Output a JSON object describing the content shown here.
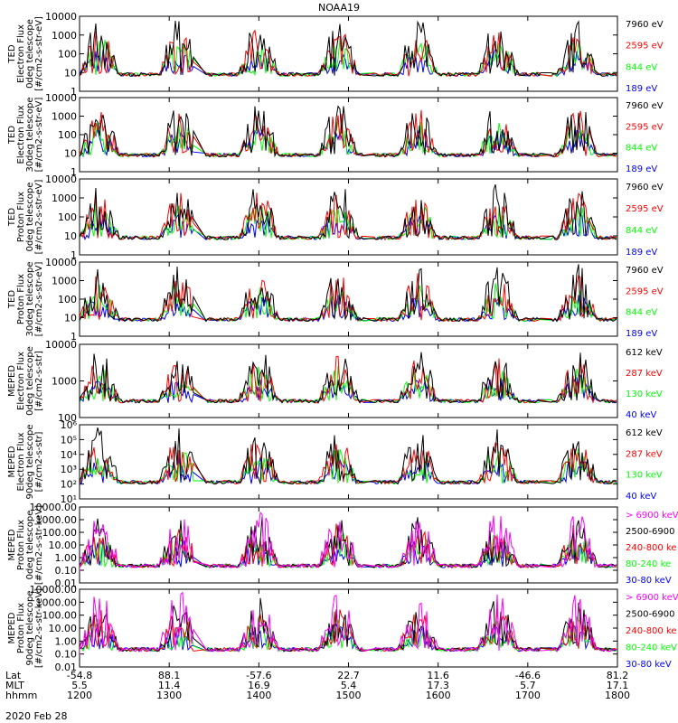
{
  "title": "NOAA19",
  "date": "2020 Feb 28",
  "colors": {
    "black": "#000000",
    "red": "#ff0000",
    "green": "#00ff00",
    "blue": "#0000ff",
    "magenta": "#ff00ff"
  },
  "footer": {
    "rows": [
      {
        "label": "Lat",
        "values": [
          "-54.8",
          "88.1",
          "-57.6",
          "22.7",
          "11.6",
          "-46.6",
          "81.2"
        ]
      },
      {
        "label": "MLT",
        "values": [
          "5.5",
          "11.4",
          "16.9",
          "5.4",
          "17.3",
          "5.7",
          "17.1"
        ]
      },
      {
        "label": "hhmm",
        "values": [
          "1200",
          "1300",
          "1400",
          "1500",
          "1600",
          "1700",
          "1800"
        ]
      }
    ]
  },
  "chart_data": [
    {
      "type": "line",
      "ylabel": [
        "TED",
        "Electron Flux",
        "0deg telescope",
        "[#/cm2-s-str-eV]"
      ],
      "yscale": "log",
      "ylim": [
        1,
        10000
      ],
      "yticks": [
        "10000",
        "1000",
        "100",
        "10",
        "1"
      ],
      "series": [
        {
          "name": "7960 eV",
          "color": "#000000"
        },
        {
          "name": "2595 eV",
          "color": "#ff0000"
        },
        {
          "name": "844 eV",
          "color": "#00ff00"
        },
        {
          "name": "189 eV",
          "color": "#0000ff"
        }
      ]
    },
    {
      "type": "line",
      "ylabel": [
        "TED",
        "Electron Flux",
        "30deg telescope",
        "[#/cm2-s-str-eV]"
      ],
      "yscale": "log",
      "ylim": [
        1,
        10000
      ],
      "yticks": [
        "10000",
        "1000",
        "100",
        "10",
        "1"
      ],
      "series": [
        {
          "name": "7960 eV",
          "color": "#000000"
        },
        {
          "name": "2595 eV",
          "color": "#ff0000"
        },
        {
          "name": "844 eV",
          "color": "#00ff00"
        },
        {
          "name": "189 eV",
          "color": "#0000ff"
        }
      ]
    },
    {
      "type": "line",
      "ylabel": [
        "TED",
        "Proton Flux",
        "0deg telescope",
        "[#/cm2-s-str-eV]"
      ],
      "yscale": "log",
      "ylim": [
        1,
        10000
      ],
      "yticks": [
        "10000",
        "1000",
        "100",
        "10",
        "1"
      ],
      "series": [
        {
          "name": "7960 eV",
          "color": "#000000"
        },
        {
          "name": "2595 eV",
          "color": "#ff0000"
        },
        {
          "name": "844 eV",
          "color": "#00ff00"
        },
        {
          "name": "189 eV",
          "color": "#0000ff"
        }
      ]
    },
    {
      "type": "line",
      "ylabel": [
        "TED",
        "Proton Flux",
        "30deg telescope",
        "[#/cm2-s-str-eV]"
      ],
      "yscale": "log",
      "ylim": [
        1,
        10000
      ],
      "yticks": [
        "10000",
        "1000",
        "100",
        "10",
        "1"
      ],
      "series": [
        {
          "name": "7960 eV",
          "color": "#000000"
        },
        {
          "name": "2595 eV",
          "color": "#ff0000"
        },
        {
          "name": "844 eV",
          "color": "#00ff00"
        },
        {
          "name": "189 eV",
          "color": "#0000ff"
        }
      ]
    },
    {
      "type": "line",
      "ylabel": [
        "MEPED",
        "Electron Flux",
        "0deg telescope",
        "[#/cm2-s-str]"
      ],
      "yscale": "log",
      "ylim": [
        100,
        10000
      ],
      "yticks": [
        "10000",
        "1000",
        "100"
      ],
      "series": [
        {
          "name": "612 keV",
          "color": "#000000"
        },
        {
          "name": "287 keV",
          "color": "#ff0000"
        },
        {
          "name": "130 keV",
          "color": "#00ff00"
        },
        {
          "name": "40 keV",
          "color": "#0000ff"
        }
      ]
    },
    {
      "type": "line",
      "ylabel": [
        "MEPED",
        "Electron Flux",
        "90deg telescope",
        "[#/cm2-s-str]"
      ],
      "yscale": "log",
      "ylim": [
        10,
        1000000
      ],
      "yticks": [
        "10⁶",
        "10⁵",
        "10⁴",
        "10³",
        "10²",
        "10¹"
      ],
      "series": [
        {
          "name": "612 keV",
          "color": "#000000"
        },
        {
          "name": "287 keV",
          "color": "#ff0000"
        },
        {
          "name": "130 keV",
          "color": "#00ff00"
        },
        {
          "name": "40 keV",
          "color": "#0000ff"
        }
      ]
    },
    {
      "type": "scatter",
      "ylabel": [
        "MEPED",
        "Proton Flux",
        "0deg telescope",
        "[#/cm2-s-str-keV]"
      ],
      "yscale": "log",
      "ylim": [
        0.01,
        10000
      ],
      "yticks": [
        "10000.00",
        "1000.00",
        "100.00",
        "10.00",
        "1.00",
        "0.10",
        "0.01"
      ],
      "series": [
        {
          "name": "> 6900 keV",
          "color": "#ff00ff"
        },
        {
          "name": "2500-6900",
          "color": "#000000"
        },
        {
          "name": "240-800 ke",
          "color": "#ff0000"
        },
        {
          "name": "80-240 ke",
          "color": "#00ff00"
        },
        {
          "name": "30-80 keV",
          "color": "#0000ff"
        }
      ]
    },
    {
      "type": "scatter",
      "ylabel": [
        "MEPED",
        "Proton Flux",
        "90deg telescope",
        "[#/cm2-s-str-keV]"
      ],
      "yscale": "log",
      "ylim": [
        0.01,
        10000
      ],
      "yticks": [
        "10000.00",
        "1000.00",
        "100.00",
        "10.00",
        "1.00",
        "0.10",
        "0.01"
      ],
      "series": [
        {
          "name": "> 6900 keV",
          "color": "#ff00ff"
        },
        {
          "name": "2500-6900",
          "color": "#000000"
        },
        {
          "name": "240-800 ke",
          "color": "#ff0000"
        },
        {
          "name": "80-240 keV",
          "color": "#00ff00"
        },
        {
          "name": "30-80 keV",
          "color": "#0000ff"
        }
      ]
    }
  ]
}
